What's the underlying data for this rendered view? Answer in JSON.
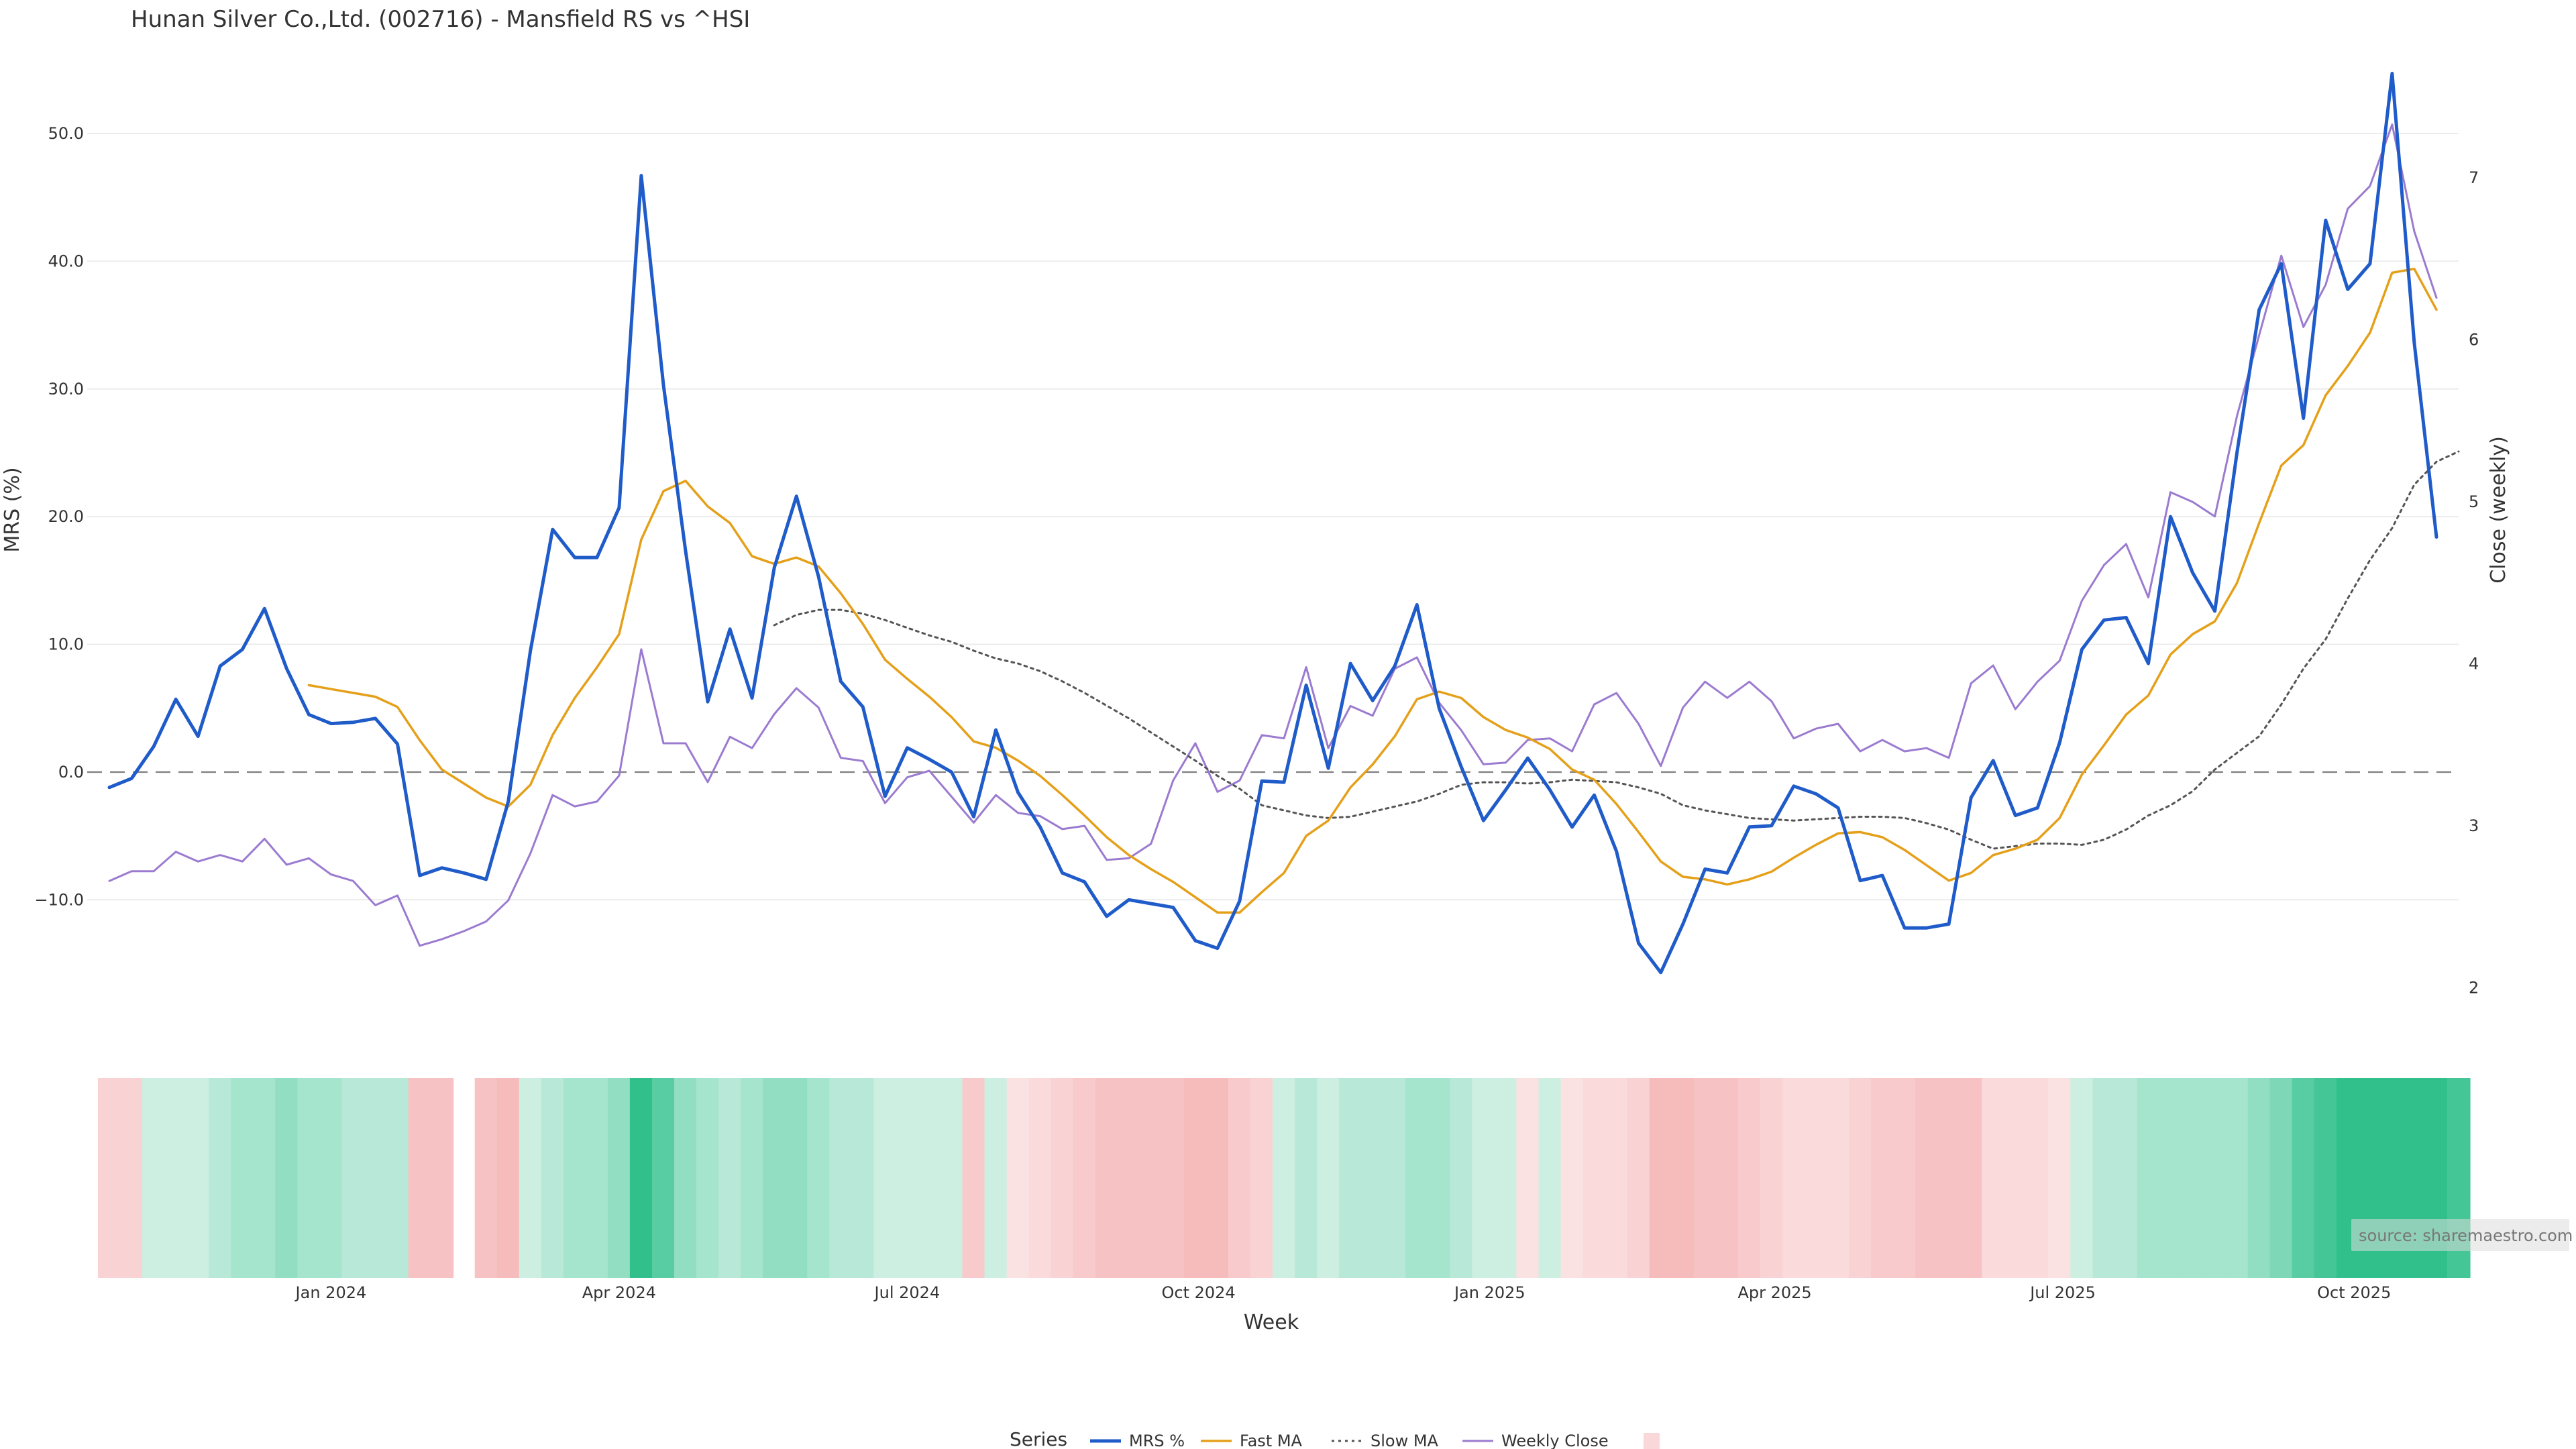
{
  "title": "Hunan Silver Co.,Ltd. (002716) - Mansfield RS vs ^HSI",
  "source": "source: sharemaestro.com",
  "colors": {
    "mrs": "#1f5bc9",
    "fast_ma": "#e5a01a",
    "slow_ma": "#555555",
    "weekly_close": "#9b7bd0",
    "zero_line": "#888888",
    "positive": "#2dbf8a",
    "negative": "#f4a9aa"
  },
  "chart_data": {
    "type": "line",
    "title": "Hunan Silver Co.,Ltd. (002716) - Mansfield RS vs ^HSI",
    "xlabel": "Week",
    "ylabel_left": "MRS (%)",
    "ylabel_right": "Close (weekly)",
    "x_range": [
      "2023-10-16",
      "2025-11-03"
    ],
    "ylim_left": [
      -20.7,
      57.3
    ],
    "ylim_right": [
      1.7,
      7.85
    ],
    "yticks_left": [
      {
        "value": 50,
        "label": "50.0"
      },
      {
        "value": 40,
        "label": "40.0"
      },
      {
        "value": 30,
        "label": "30.0"
      },
      {
        "value": 20,
        "label": "20.0"
      },
      {
        "value": 10,
        "label": "10.0"
      },
      {
        "value": 0,
        "label": "0.0"
      },
      {
        "value": -10,
        "label": "−10.0"
      }
    ],
    "yticks_right": [
      {
        "value": 7,
        "label": "7"
      },
      {
        "value": 6,
        "label": "6"
      },
      {
        "value": 5,
        "label": "5"
      },
      {
        "value": 4,
        "label": "4"
      },
      {
        "value": 3,
        "label": "3"
      },
      {
        "value": 2,
        "label": "2"
      }
    ],
    "xticks": [
      {
        "date": "2024-01-01",
        "label": "Jan 2024"
      },
      {
        "date": "2024-04-01",
        "label": "Apr 2024"
      },
      {
        "date": "2024-07-01",
        "label": "Jul 2024"
      },
      {
        "date": "2024-10-01",
        "label": "Oct 2024"
      },
      {
        "date": "2025-01-01",
        "label": "Jan 2025"
      },
      {
        "date": "2025-04-01",
        "label": "Apr 2025"
      },
      {
        "date": "2025-07-01",
        "label": "Jul 2025"
      },
      {
        "date": "2025-10-01",
        "label": "Oct 2025"
      }
    ],
    "x_start": "2023-10-23",
    "week_days": 7,
    "grid": true,
    "zero_line": true,
    "legend_position": "bottom-center",
    "legend_title": "Series",
    "series": [
      {
        "name": "MRS %",
        "axis": "left",
        "style": "solid",
        "values": [
          -1.2,
          -0.5,
          2.0,
          5.7,
          2.8,
          8.3,
          9.6,
          12.8,
          8.1,
          4.5,
          3.8,
          3.9,
          4.2,
          2.2,
          -8.1,
          -7.5,
          -7.9,
          -8.4,
          -2.3,
          9.5,
          19.0,
          16.8,
          16.8,
          20.7,
          46.7,
          30.3,
          17.3,
          5.5,
          11.2,
          5.8,
          16.0,
          21.6,
          15.3,
          7.1,
          5.1,
          -1.9,
          1.9,
          1.0,
          0.0,
          -3.5,
          3.3,
          -1.6,
          -4.3,
          -7.9,
          -8.6,
          -11.3,
          -10.0,
          -10.3,
          -10.6,
          -13.2,
          -13.8,
          -10.1,
          -0.7,
          -0.8,
          6.8,
          0.3,
          8.5,
          5.6,
          8.3,
          13.1,
          5.0,
          0.4,
          -3.8,
          -1.4,
          1.1,
          -1.4,
          -4.3,
          -1.8,
          -6.2,
          -13.4,
          -15.7,
          -11.9,
          -7.6,
          -7.9,
          -4.3,
          -4.2,
          -1.1,
          -1.7,
          -2.8,
          -8.5,
          -8.1,
          -12.2,
          -12.2,
          -11.9,
          -2.0,
          0.9,
          -3.4,
          -2.8,
          2.3,
          9.6,
          11.9,
          12.1,
          8.5,
          20.0,
          15.6,
          12.6,
          25.0,
          36.2,
          39.8,
          27.7,
          43.2,
          37.8,
          39.8,
          54.7,
          33.6,
          18.4
        ]
      },
      {
        "name": "Fast MA",
        "axis": "left",
        "style": "solid",
        "start_index": 9,
        "values": [
          6.8,
          6.5,
          6.2,
          5.9,
          5.1,
          2.5,
          0.2,
          -0.9,
          -2.0,
          -2.7,
          -1.0,
          2.9,
          5.8,
          8.2,
          10.8,
          18.2,
          22.0,
          22.8,
          20.8,
          19.5,
          16.9,
          16.3,
          16.8,
          16.1,
          14.0,
          11.6,
          8.8,
          7.3,
          5.9,
          4.3,
          2.4,
          1.9,
          0.9,
          -0.3,
          -1.8,
          -3.4,
          -5.1,
          -6.5,
          -7.6,
          -8.6,
          -9.8,
          -11.0,
          -11.0,
          -9.4,
          -7.9,
          -5.0,
          -3.8,
          -1.2,
          0.6,
          2.8,
          5.7,
          6.3,
          5.8,
          4.3,
          3.3,
          2.7,
          1.8,
          0.2,
          -0.6,
          -2.5,
          -4.7,
          -7.0,
          -8.2,
          -8.4,
          -8.8,
          -8.4,
          -7.8,
          -6.7,
          -5.7,
          -4.8,
          -4.7,
          -5.1,
          -6.1,
          -7.3,
          -8.5,
          -7.9,
          -6.5,
          -6.0,
          -5.3,
          -3.6,
          -0.2,
          2.1,
          4.5,
          6.0,
          9.2,
          10.8,
          11.8,
          14.8,
          19.5,
          24.0,
          25.6,
          29.5,
          31.8,
          34.4,
          39.1,
          39.4,
          36.2
        ]
      },
      {
        "name": "Slow MA",
        "axis": "left",
        "style": "dotted",
        "start_index": 30,
        "values": [
          11.5,
          12.3,
          12.7,
          12.7,
          12.4,
          11.9,
          11.3,
          10.7,
          10.2,
          9.5,
          8.9,
          8.5,
          7.9,
          7.1,
          6.2,
          5.2,
          4.2,
          3.1,
          2.0,
          0.9,
          -0.3,
          -1.3,
          -2.6,
          -3.0,
          -3.4,
          -3.6,
          -3.5,
          -3.1,
          -2.7,
          -2.3,
          -1.7,
          -1.0,
          -0.8,
          -0.8,
          -0.9,
          -0.8,
          -0.6,
          -0.7,
          -0.8,
          -1.2,
          -1.7,
          -2.6,
          -3.0,
          -3.3,
          -3.6,
          -3.7,
          -3.8,
          -3.7,
          -3.6,
          -3.5,
          -3.5,
          -3.6,
          -4.0,
          -4.5,
          -5.3,
          -6.0,
          -5.8,
          -5.6,
          -5.6,
          -5.7,
          -5.3,
          -4.5,
          -3.4,
          -2.6,
          -1.5,
          0.2,
          1.5,
          2.8,
          5.3,
          8.1,
          10.4,
          13.6,
          16.6,
          19.1,
          22.5,
          24.3,
          25.1
        ]
      },
      {
        "name": "Weekly Close",
        "axis": "right",
        "style": "solid",
        "values": [
          2.66,
          2.72,
          2.72,
          2.84,
          2.78,
          2.82,
          2.78,
          2.92,
          2.76,
          2.8,
          2.7,
          2.66,
          2.51,
          2.57,
          2.26,
          2.3,
          2.35,
          2.41,
          2.54,
          2.83,
          3.19,
          3.12,
          3.15,
          3.31,
          4.09,
          3.51,
          3.51,
          3.27,
          3.55,
          3.48,
          3.69,
          3.85,
          3.73,
          3.42,
          3.4,
          3.14,
          3.3,
          3.34,
          3.18,
          3.02,
          3.19,
          3.08,
          3.06,
          2.98,
          3.0,
          2.79,
          2.8,
          2.89,
          3.28,
          3.51,
          3.21,
          3.28,
          3.56,
          3.54,
          3.98,
          3.48,
          3.74,
          3.68,
          3.97,
          4.04,
          3.76,
          3.59,
          3.38,
          3.39,
          3.53,
          3.54,
          3.46,
          3.75,
          3.82,
          3.63,
          3.37,
          3.73,
          3.89,
          3.79,
          3.89,
          3.77,
          3.54,
          3.6,
          3.63,
          3.46,
          3.53,
          3.46,
          3.48,
          3.42,
          3.88,
          3.99,
          3.72,
          3.89,
          4.02,
          4.39,
          4.61,
          4.74,
          4.41,
          5.06,
          5.0,
          4.91,
          5.53,
          6.03,
          6.52,
          6.08,
          6.34,
          6.81,
          6.95,
          7.33,
          6.67,
          6.26
        ]
      }
    ],
    "heatmap_values": [
      -5,
      -5,
      2,
      2,
      2,
      3,
      4,
      4,
      5,
      4,
      4,
      3,
      3,
      3,
      -7,
      -7,
      null,
      -7,
      -8,
      2,
      3,
      4,
      4,
      5,
      10,
      8,
      5,
      4,
      3,
      4,
      5,
      5,
      4,
      3,
      3,
      2,
      2,
      2,
      2,
      -6,
      2,
      -3,
      -4,
      -5,
      -6,
      -7,
      -7,
      -7,
      -7,
      -8,
      -8,
      -6,
      -5,
      2,
      3,
      2,
      3,
      3,
      3,
      4,
      4,
      3,
      2,
      2,
      -3,
      2,
      -3,
      -4,
      -4,
      -5,
      -8,
      -8,
      -7,
      -7,
      -6,
      -5,
      -4,
      -4,
      -4,
      -5,
      -6,
      -6,
      -7,
      -7,
      -7,
      -4,
      -4,
      -4,
      -3,
      2,
      3,
      3,
      4,
      4,
      4,
      4,
      4,
      5,
      6,
      8,
      9,
      10,
      10,
      10,
      10,
      10,
      9
    ]
  }
}
